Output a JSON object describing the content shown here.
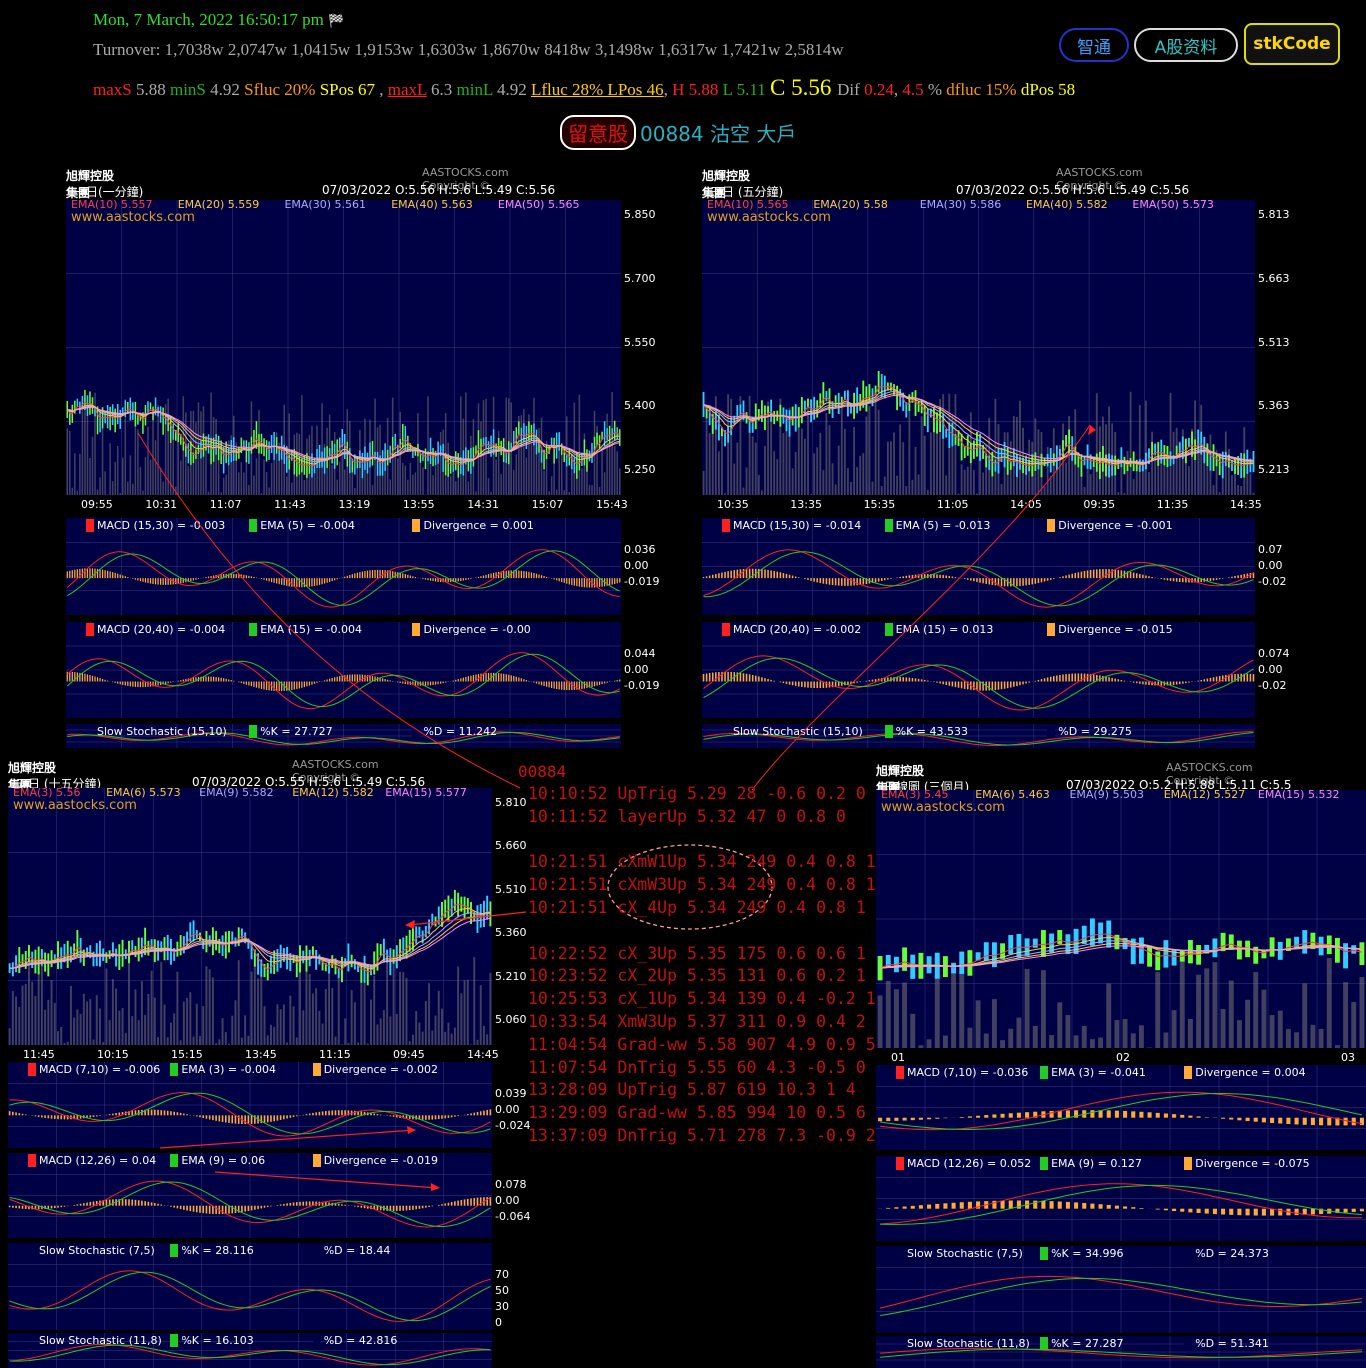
{
  "header": {
    "date": "Mon, 7 March, 2022 16:50:17 pm",
    "flag": "🏁",
    "turnover": "Turnover: 1,7038w 2,0747w 1,0415w 1,9153w 1,6303w 1,8670w 8418w 3,1498w 1,6317w 1,7421w 2,5814w",
    "stats": [
      {
        "t": "maxS",
        "c": "#ff2020"
      },
      {
        "t": " 5.88 ",
        "c": "#aaaaaa"
      },
      {
        "t": "minS",
        "c": "#20b020"
      },
      {
        "t": " 4.92 ",
        "c": "#aaaaaa"
      },
      {
        "t": "Sfluc 20% ",
        "c": "#ff9900"
      },
      {
        "t": "SPos 67",
        "c": "#ffff00"
      },
      {
        "t": " , ",
        "c": "#aaaaaa"
      },
      {
        "t": "maxL",
        "c": "#ff2020",
        "u": true
      },
      {
        "t": " 6.3 ",
        "c": "#aaaaaa"
      },
      {
        "t": "minL",
        "c": "#20b020"
      },
      {
        "t": " 4.92 ",
        "c": "#aaaaaa"
      },
      {
        "t": "Lfluc 28% LPos 46",
        "c": "#ffcc00",
        "u": true
      },
      {
        "t": ", ",
        "c": "#aaaaaa"
      },
      {
        "t": "H 5.88 ",
        "c": "#ff2020"
      },
      {
        "t": "L 5.11 ",
        "c": "#20b020"
      },
      {
        "t": "C 5.56 ",
        "c": "#ffff00",
        "big": true
      },
      {
        "t": "Dif ",
        "c": "#aaaaaa"
      },
      {
        "t": "0.24",
        "c": "#ff2020"
      },
      {
        "t": ", ",
        "c": "#aaaaaa"
      },
      {
        "t": "4.5",
        "c": "#ff2020"
      },
      {
        "t": " % ",
        "c": "#aaaaaa"
      },
      {
        "t": "dfluc 15% ",
        "c": "#ff9900"
      },
      {
        "t": "dPos 58",
        "c": "#ffff00"
      }
    ]
  },
  "buttons": {
    "zhitong": "智通",
    "ashare": "A股资料",
    "stkcode": "stkCode"
  },
  "titlebar": {
    "watch": "留意股",
    "code": "00884 沽空 大戶"
  },
  "panels": [
    {
      "id": "p1",
      "title": "旭輝控股集團 (00884)",
      "sub": "一日(一分鐘)",
      "copy": "AASTOCKS.com Copyright ©",
      "ohlc": "07/03/2022   O:5.56  H:5.6  L:5.49  C:5.56",
      "ema": [
        [
          "EMA(10) 5.557",
          "#ff4040"
        ],
        [
          "EMA(20) 5.559",
          "#ffcc33"
        ],
        [
          "EMA(30) 5.561",
          "#aaaaff"
        ],
        [
          "EMA(40) 5.563",
          "#ffcc33"
        ],
        [
          "EMA(50) 5.565",
          "#ff88ff"
        ]
      ],
      "www": "www.aastocks.com",
      "yticks": [
        "5.850",
        "5.700",
        "5.550",
        "5.400",
        "5.250"
      ],
      "xticks": [
        "09:55",
        "10:31",
        "11:07",
        "11:43",
        "13:19",
        "13:55",
        "14:31",
        "15:07",
        "15:43"
      ],
      "macd1": [
        "MACD (15,30) = -0.003",
        "EMA (5) = -0.004",
        "Divergence = 0.001"
      ],
      "macd1y": [
        "0.036",
        "0.00",
        "-0.019"
      ],
      "macd2": [
        "MACD (20,40) = -0.004",
        "EMA (15) = -0.004",
        "Divergence = -0.00"
      ],
      "macd2y": [
        "0.044",
        "0.00",
        "-0.019"
      ],
      "stoch": [
        "Slow Stochastic (15,10)",
        "%K = 27.727",
        "%D = 11.242"
      ]
    },
    {
      "id": "p2",
      "title": "旭輝控股集團 (00884)",
      "sub": "三日 (五分鐘)",
      "copy": "AASTOCKS.com Copyright ©",
      "ohlc": "07/03/2022   O:5.56  H:5.6  L:5.49  C:5.56",
      "ema": [
        [
          "EMA(10) 5.565",
          "#ff4040"
        ],
        [
          "EMA(20) 5.58",
          "#ffcc33"
        ],
        [
          "EMA(30) 5.586",
          "#aaaaff"
        ],
        [
          "EMA(40) 5.582",
          "#ffcc33"
        ],
        [
          "EMA(50) 5.573",
          "#ff88ff"
        ]
      ],
      "www": "www.aastocks.com",
      "yticks": [
        "5.813",
        "5.663",
        "5.513",
        "5.363",
        "5.213"
      ],
      "xticks": [
        "10:35",
        "13:35",
        "15:35",
        "11:05",
        "14:05",
        "09:35",
        "11:35",
        "14:35"
      ],
      "macd1": [
        "MACD (15,30) = -0.014",
        "EMA (5) = -0.013",
        "Divergence = -0.001"
      ],
      "macd1y": [
        "0.07",
        "0.00",
        "-0.02"
      ],
      "macd2": [
        "MACD (20,40) = -0.002",
        "EMA (15) = 0.013",
        "Divergence = -0.015"
      ],
      "macd2y": [
        "0.074",
        "0.00",
        "-0.02"
      ],
      "stoch": [
        "Slow Stochastic (15,10)",
        "%K = 43.533",
        "%D = 29.275"
      ]
    },
    {
      "id": "p3",
      "title": "旭輝控股集團 (00884)",
      "sub": "五日 (十五分鐘)",
      "copy": "AASTOCKS.com Copyright ©",
      "ohlc": "07/03/2022   O:5.55  H:5.6  L:5.49  C:5.56",
      "ema": [
        [
          "EMA(3) 5.56",
          "#ff4040"
        ],
        [
          "EMA(6) 5.573",
          "#ffcc33"
        ],
        [
          "EMA(9) 5.582",
          "#aaaaff"
        ],
        [
          "EMA(12) 5.582",
          "#ffcc33"
        ],
        [
          "EMA(15) 5.577",
          "#ff88ff"
        ]
      ],
      "www": "www.aastocks.com",
      "yticks": [
        "5.810",
        "5.660",
        "5.510",
        "5.360",
        "5.210",
        "5.060"
      ],
      "xticks": [
        "11:45",
        "10:15",
        "15:15",
        "13:45",
        "11:15",
        "09:45",
        "14:45"
      ],
      "macd1": [
        "MACD (7,10) = -0.006",
        "EMA (3) = -0.004",
        "Divergence = -0.002"
      ],
      "macd1y": [
        "0.039",
        "0.00",
        "-0.024"
      ],
      "macd2": [
        "MACD (12,26) = 0.04",
        "EMA (9) = 0.06",
        "Divergence = -0.019"
      ],
      "macd2y": [
        "0.078",
        "0.00",
        "-0.064"
      ],
      "stoch": [
        "Slow Stochastic (7,5)",
        "%K = 28.116",
        "%D = 18.44"
      ],
      "stochy": [
        "70",
        "50",
        "30",
        "0"
      ],
      "stoch2": [
        "Slow Stochastic (11,8)",
        "%K = 16.103",
        "%D = 42.816"
      ]
    },
    {
      "id": "p4",
      "title": "旭輝控股集團 (00884)",
      "sub": "日線圖 (三個月)",
      "copy": "AASTOCKS.com Copyright ©",
      "ohlc": "07/03/2022   O:5.2  H:5.88  L:5.11  C:5.5",
      "ema": [
        [
          "EMA(3) 5.45",
          "#ff4040"
        ],
        [
          "EMA(6) 5.463",
          "#ffcc33"
        ],
        [
          "EMA(9) 5.503",
          "#aaaaff"
        ],
        [
          "EMA(12) 5.527",
          "#ffcc33"
        ],
        [
          "EMA(15) 5.532",
          "#ff88ff"
        ]
      ],
      "www": "www.aastocks.com",
      "yticks": [],
      "xticks": [
        "01",
        "02",
        "03"
      ],
      "macd1": [
        "MACD (7,10) = -0.036",
        "EMA (3) = -0.041",
        "Divergence = 0.004"
      ],
      "macd1y": [],
      "macd2": [
        "MACD (12,26) = 0.052",
        "EMA (9) = 0.127",
        "Divergence = -0.075"
      ],
      "macd2y": [],
      "stoch": [
        "Slow Stochastic (7,5)",
        "%K = 34.996",
        "%D = 24.373"
      ],
      "stoch2": [
        "Slow Stochastic (11,8)",
        "%K = 27.287",
        "%D = 51.341"
      ]
    }
  ],
  "log": {
    "code": "00884",
    "lines": [
      "10:10:52 UpTrig 5.29 28 -0.6 0.2 0",
      "10:11:52 layerUp 5.32 47 0 0.8 0",
      "",
      "10:21:51 cXmW1Up 5.34 249 0.4 0.8 1",
      "10:21:51 cXmW3Up 5.34 249 0.4 0.8 1",
      "10:21:51 cX_4Up 5.34 249 0.4 0.8 1",
      "",
      "10:22:52 cX_3Up 5.35 175 0.6 0.6 1",
      "10:23:52 cX_2Up 5.35 131 0.6 0.2 1",
      "10:25:53 cX_1Up 5.34 139 0.4 -0.2 1",
      "10:33:54 XmW3Up 5.37 311 0.9 0.4 2",
      "11:04:54 Grad-ww 5.58 907 4.9 0.9 5",
      "11:07:54 DnTrig 5.55 60 4.3 -0.5 0",
      "13:28:09 UpTrig 5.87 619 10.3 1 4",
      "13:29:09 Grad-ww 5.85 994 10 0.5 6",
      "13:37:09 DnTrig 5.71 278 7.3 -0.9 2"
    ]
  },
  "colors": {
    "chartbg": "#000044",
    "grid": "#3a3a8a",
    "up": "#66ff33",
    "down": "#33ccff",
    "macd": "#ff2020",
    "ema": "#22cc22",
    "div": "#ffaa33"
  }
}
